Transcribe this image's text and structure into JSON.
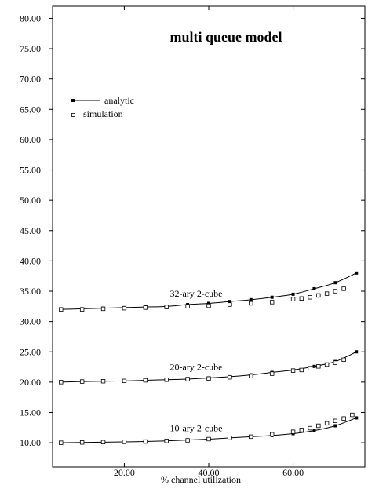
{
  "chart_data": {
    "type": "line",
    "title": "multi queue model",
    "xlabel": "% channel utilization",
    "ylabel": "",
    "xlim": [
      3,
      77
    ],
    "ylim": [
      6,
      82
    ],
    "xticks": [
      20,
      40,
      60
    ],
    "xtick_labels": [
      "20.00",
      "40.00",
      "60.00"
    ],
    "yticks": [
      10,
      15,
      20,
      25,
      30,
      35,
      40,
      45,
      50,
      55,
      60,
      65,
      70,
      75,
      80
    ],
    "ytick_labels": [
      "10.00",
      "15.00",
      "20.00",
      "25.00",
      "30.00",
      "35.00",
      "40.00",
      "45.00",
      "50.00",
      "55.00",
      "60.00",
      "65.00",
      "70.00",
      "75.00",
      "80.00"
    ],
    "grid": false,
    "legend": {
      "placement": "top-left",
      "entries": [
        {
          "label": "analytic",
          "marker": "filled-square-line"
        },
        {
          "label": "simulation",
          "marker": "open-square"
        }
      ]
    },
    "series": [
      {
        "curve_label": "32-ary 2-cube",
        "analytic": {
          "x": [
            5,
            10,
            15,
            20,
            25,
            30,
            35,
            40,
            45,
            50,
            55,
            60,
            65,
            70,
            75
          ],
          "y": [
            32.0,
            32.1,
            32.2,
            32.3,
            32.4,
            32.5,
            32.8,
            33.0,
            33.3,
            33.6,
            34.0,
            34.5,
            35.4,
            36.4,
            38.0
          ]
        },
        "simulation": {
          "x": [
            5,
            10,
            15,
            20,
            25,
            30,
            35,
            40,
            45,
            50,
            55,
            60,
            62,
            64,
            66,
            68,
            70,
            72
          ],
          "y": [
            32.0,
            32.0,
            32.1,
            32.2,
            32.3,
            32.4,
            32.5,
            32.6,
            32.8,
            33.0,
            33.2,
            33.7,
            33.8,
            34.0,
            34.3,
            34.6,
            35.0,
            35.4
          ]
        }
      },
      {
        "curve_label": "20-ary 2-cube",
        "analytic": {
          "x": [
            5,
            10,
            15,
            20,
            25,
            30,
            35,
            40,
            45,
            50,
            55,
            60,
            65,
            70,
            75
          ],
          "y": [
            20.0,
            20.1,
            20.15,
            20.2,
            20.3,
            20.4,
            20.5,
            20.7,
            20.9,
            21.2,
            21.6,
            22.0,
            22.6,
            23.4,
            25.0
          ]
        },
        "simulation": {
          "x": [
            5,
            10,
            15,
            20,
            25,
            30,
            35,
            40,
            45,
            50,
            55,
            60,
            62,
            64,
            66,
            68,
            70,
            72
          ],
          "y": [
            20.0,
            20.1,
            20.15,
            20.2,
            20.3,
            20.4,
            20.5,
            20.6,
            20.8,
            21.0,
            21.4,
            21.9,
            22.0,
            22.3,
            22.6,
            22.9,
            23.2,
            23.7
          ]
        }
      },
      {
        "curve_label": "10-ary 2-cube",
        "analytic": {
          "x": [
            5,
            10,
            15,
            20,
            25,
            30,
            35,
            40,
            45,
            50,
            55,
            60,
            65,
            70,
            75
          ],
          "y": [
            10.0,
            10.05,
            10.1,
            10.15,
            10.2,
            10.3,
            10.45,
            10.6,
            10.8,
            11.0,
            11.2,
            11.5,
            12.0,
            12.8,
            14.1
          ]
        },
        "simulation": {
          "x": [
            5,
            10,
            15,
            20,
            25,
            30,
            35,
            40,
            45,
            50,
            55,
            60,
            62,
            64,
            66,
            68,
            70,
            72,
            74
          ],
          "y": [
            10.0,
            10.05,
            10.1,
            10.15,
            10.2,
            10.3,
            10.4,
            10.6,
            10.8,
            11.0,
            11.4,
            11.8,
            12.1,
            12.4,
            12.8,
            13.2,
            13.6,
            14.0,
            14.6
          ]
        }
      }
    ]
  }
}
